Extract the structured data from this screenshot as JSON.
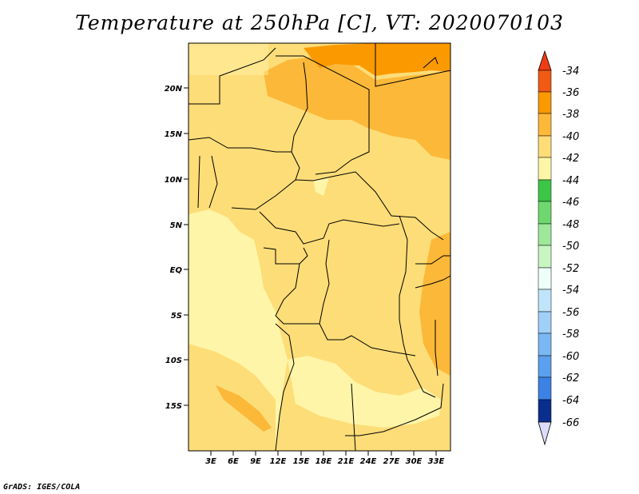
{
  "title": "Temperature at 250hPa [C], VT: 2020070103",
  "credit": "GrADS: IGES/COLA",
  "colors": {
    "c34": "#f05a14",
    "c36": "#fa9900",
    "c38": "#fcb838",
    "c40": "#fddd78",
    "c42": "#fff5a8",
    "c44": "#3cc646",
    "c46": "#6ed86e",
    "c48": "#9ee89a",
    "c50": "#c8f5c2",
    "c52": "#eefffa",
    "c54": "#c0e4fa",
    "c56": "#a0d0f8",
    "c58": "#7ab8f4",
    "c60": "#5aa0ee",
    "c62": "#3c82e4",
    "c64": "#1e5ed0",
    "c66": "#0a2e8c",
    "under": "#0a0a5a",
    "over": "#dcdcf8"
  },
  "y_axis": [
    "20N",
    "15N",
    "10N",
    "5N",
    "EQ",
    "5S",
    "10S",
    "15S"
  ],
  "x_axis": [
    "3E",
    "6E",
    "9E",
    "12E",
    "15E",
    "18E",
    "21E",
    "24E",
    "27E",
    "30E",
    "33E"
  ],
  "colorbar": {
    "labels": [
      "-34",
      "-36",
      "-38",
      "-40",
      "-42",
      "-44",
      "-46",
      "-48",
      "-50",
      "-52",
      "-54",
      "-56",
      "-58",
      "-60",
      "-62",
      "-64",
      "-66"
    ]
  }
}
